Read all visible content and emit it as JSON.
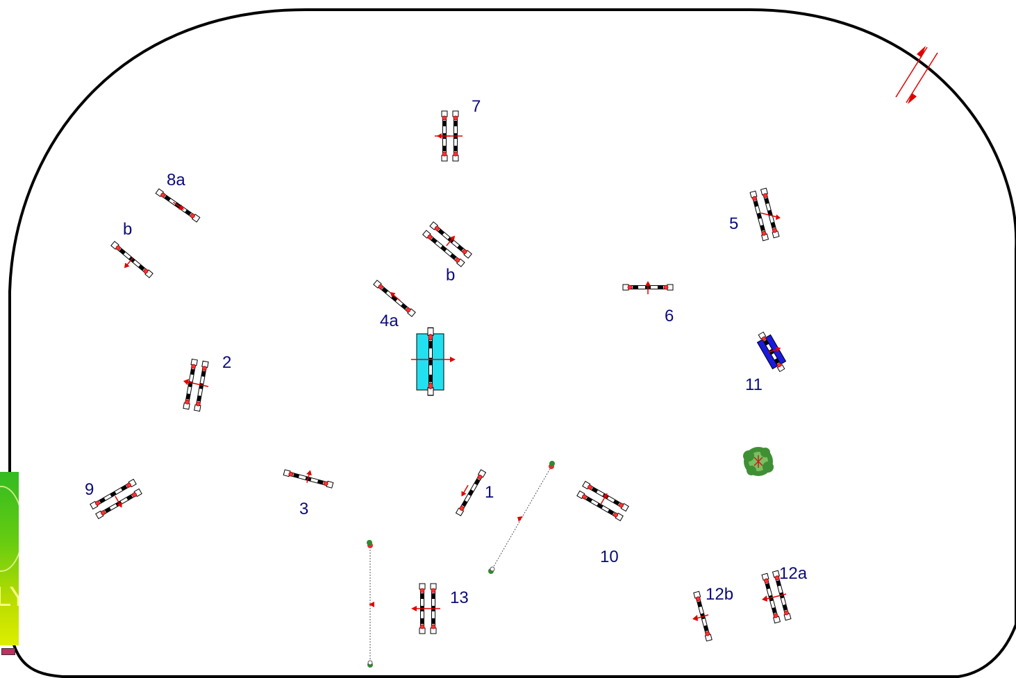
{
  "labels": {
    "n1": "1",
    "n2": "2",
    "n3": "3",
    "n4a": "4a",
    "n4b": "b",
    "n5": "5",
    "n6": "6",
    "n7": "7",
    "n8a": "8a",
    "n8b": "b",
    "n9": "9",
    "n10": "10",
    "n11": "11",
    "n12a": "12a",
    "n12b": "12b",
    "n13": "13"
  },
  "logo": {
    "text": "LY"
  },
  "colors": {
    "outline": "#000000",
    "label": "#0b0b7a",
    "direction_arrow": "#e00000",
    "table": "#22e0f0",
    "tyre_tunnel": "#1a1adf",
    "tree": "#4a9a3a"
  },
  "icons": {
    "gate_entry": "double-arrow-icon",
    "tree": "tree-icon"
  }
}
